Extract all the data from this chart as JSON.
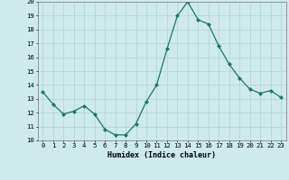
{
  "x": [
    0,
    1,
    2,
    3,
    4,
    5,
    6,
    7,
    8,
    9,
    10,
    11,
    12,
    13,
    14,
    15,
    16,
    17,
    18,
    19,
    20,
    21,
    22,
    23
  ],
  "y": [
    13.5,
    12.6,
    11.9,
    12.1,
    12.5,
    11.9,
    10.8,
    10.4,
    10.4,
    11.2,
    12.8,
    14.0,
    16.6,
    19.0,
    20.0,
    18.7,
    18.4,
    16.8,
    15.5,
    14.5,
    13.7,
    13.4,
    13.6,
    13.1
  ],
  "xlabel": "Humidex (Indice chaleur)",
  "ylim": [
    10,
    20
  ],
  "xlim": [
    -0.5,
    23.5
  ],
  "yticks": [
    10,
    11,
    12,
    13,
    14,
    15,
    16,
    17,
    18,
    19,
    20
  ],
  "xticks": [
    0,
    1,
    2,
    3,
    4,
    5,
    6,
    7,
    8,
    9,
    10,
    11,
    12,
    13,
    14,
    15,
    16,
    17,
    18,
    19,
    20,
    21,
    22,
    23
  ],
  "line_color": "#1a7a5e",
  "marker_color": "#1a7a5e",
  "bg_color": "#ceeaea",
  "grid_color": "#aed4d4",
  "xlabel_fontsize": 6.0,
  "tick_fontsize": 5.2
}
